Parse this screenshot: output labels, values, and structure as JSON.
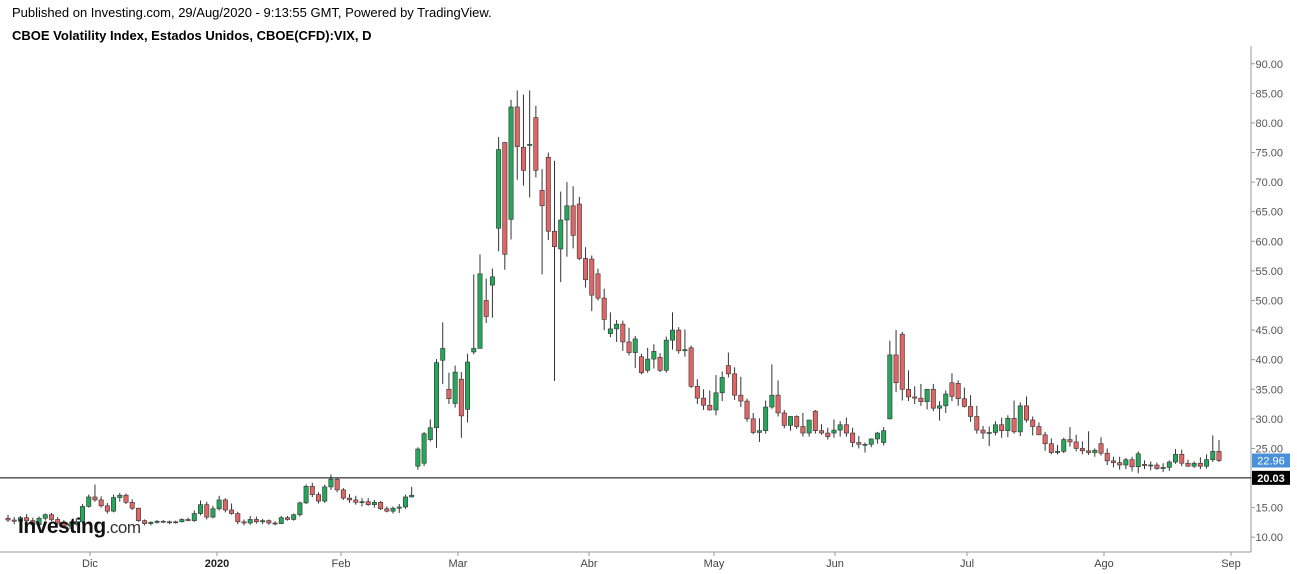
{
  "header": {
    "published": "Published on Investing.com, 29/Aug/2020 - 9:13:55 GMT, Powered by TradingView.",
    "title": "CBOE Volatility Index, Estados Unidos, CBOE(CFD):VIX, D"
  },
  "logo": {
    "main": "Investing",
    "suffix": ".com"
  },
  "chart_data": {
    "type": "candlestick",
    "ylim": [
      7.5,
      93
    ],
    "y_ticks": [
      "10.00",
      "15.00",
      "20.00",
      "25.00",
      "30.00",
      "35.00",
      "40.00",
      "45.00",
      "50.00",
      "55.00",
      "60.00",
      "65.00",
      "70.00",
      "75.00",
      "80.00",
      "85.00",
      "90.00"
    ],
    "x_ticks": [
      "Dic",
      "2020",
      "Feb",
      "Mar",
      "Abr",
      "May",
      "Jun",
      "Jul",
      "Ago",
      "Sep"
    ],
    "last_price": {
      "label": "22.96",
      "value": 22.96,
      "color": "#4a90d9"
    },
    "reference_line": {
      "label": "20.03",
      "value": 20.03,
      "color": "#000000"
    },
    "colors": {
      "up": "#26a65b",
      "down": "#e06666",
      "outline": "#333333"
    },
    "candles": [
      {
        "o": 13.2,
        "h": 13.8,
        "l": 12.6,
        "c": 12.9
      },
      {
        "o": 12.9,
        "h": 13.4,
        "l": 12.2,
        "c": 12.7
      },
      {
        "o": 12.7,
        "h": 13.6,
        "l": 12.3,
        "c": 13.3
      },
      {
        "o": 13.3,
        "h": 13.9,
        "l": 12.5,
        "c": 12.8
      },
      {
        "o": 12.8,
        "h": 13.3,
        "l": 11.9,
        "c": 12.1
      },
      {
        "o": 12.1,
        "h": 13.5,
        "l": 11.9,
        "c": 13.2
      },
      {
        "o": 13.2,
        "h": 14.0,
        "l": 12.8,
        "c": 13.8
      },
      {
        "o": 13.8,
        "h": 14.1,
        "l": 12.7,
        "c": 13.0
      },
      {
        "o": 13.0,
        "h": 13.4,
        "l": 12.0,
        "c": 12.4
      },
      {
        "o": 12.4,
        "h": 12.9,
        "l": 11.5,
        "c": 11.9
      },
      {
        "o": 11.9,
        "h": 12.6,
        "l": 11.4,
        "c": 12.2
      },
      {
        "o": 12.2,
        "h": 13.2,
        "l": 12.0,
        "c": 12.6
      },
      {
        "o": 12.6,
        "h": 15.6,
        "l": 12.3,
        "c": 15.2
      },
      {
        "o": 15.2,
        "h": 17.2,
        "l": 15.0,
        "c": 16.8
      },
      {
        "o": 16.8,
        "h": 18.9,
        "l": 16.0,
        "c": 16.3
      },
      {
        "o": 16.3,
        "h": 16.9,
        "l": 15.0,
        "c": 15.3
      },
      {
        "o": 15.3,
        "h": 15.8,
        "l": 14.0,
        "c": 14.4
      },
      {
        "o": 14.4,
        "h": 17.2,
        "l": 14.2,
        "c": 16.7
      },
      {
        "o": 16.7,
        "h": 17.5,
        "l": 16.0,
        "c": 17.1
      },
      {
        "o": 17.1,
        "h": 17.4,
        "l": 15.6,
        "c": 15.9
      },
      {
        "o": 15.9,
        "h": 16.4,
        "l": 14.6,
        "c": 14.9
      },
      {
        "o": 14.9,
        "h": 15.0,
        "l": 12.6,
        "c": 12.8
      },
      {
        "o": 12.8,
        "h": 13.0,
        "l": 12.0,
        "c": 12.3
      },
      {
        "o": 12.3,
        "h": 12.7,
        "l": 12.0,
        "c": 12.5
      },
      {
        "o": 12.5,
        "h": 12.9,
        "l": 12.3,
        "c": 12.7
      },
      {
        "o": 12.7,
        "h": 12.9,
        "l": 12.4,
        "c": 12.6
      },
      {
        "o": 12.6,
        "h": 12.8,
        "l": 12.2,
        "c": 12.5
      },
      {
        "o": 12.5,
        "h": 12.8,
        "l": 12.3,
        "c": 12.6
      },
      {
        "o": 12.6,
        "h": 13.2,
        "l": 12.5,
        "c": 13.0
      },
      {
        "o": 13.0,
        "h": 13.3,
        "l": 12.7,
        "c": 12.8
      },
      {
        "o": 12.8,
        "h": 14.5,
        "l": 12.6,
        "c": 14.0
      },
      {
        "o": 14.0,
        "h": 16.2,
        "l": 13.7,
        "c": 15.5
      },
      {
        "o": 15.5,
        "h": 16.0,
        "l": 13.0,
        "c": 13.4
      },
      {
        "o": 13.4,
        "h": 15.3,
        "l": 13.2,
        "c": 14.8
      },
      {
        "o": 14.8,
        "h": 17.0,
        "l": 14.5,
        "c": 16.3
      },
      {
        "o": 16.3,
        "h": 16.6,
        "l": 14.2,
        "c": 14.6
      },
      {
        "o": 14.6,
        "h": 15.7,
        "l": 13.8,
        "c": 14.0
      },
      {
        "o": 14.0,
        "h": 14.3,
        "l": 12.2,
        "c": 12.6
      },
      {
        "o": 12.6,
        "h": 13.0,
        "l": 12.0,
        "c": 12.4
      },
      {
        "o": 12.4,
        "h": 13.6,
        "l": 12.1,
        "c": 13.0
      },
      {
        "o": 13.0,
        "h": 13.5,
        "l": 12.3,
        "c": 12.6
      },
      {
        "o": 12.6,
        "h": 13.1,
        "l": 12.2,
        "c": 12.8
      },
      {
        "o": 12.8,
        "h": 13.0,
        "l": 12.1,
        "c": 12.4
      },
      {
        "o": 12.4,
        "h": 12.7,
        "l": 12.0,
        "c": 12.3
      },
      {
        "o": 12.3,
        "h": 13.6,
        "l": 12.2,
        "c": 13.3
      },
      {
        "o": 13.3,
        "h": 13.6,
        "l": 12.8,
        "c": 13.0
      },
      {
        "o": 13.0,
        "h": 14.0,
        "l": 12.8,
        "c": 13.8
      },
      {
        "o": 13.8,
        "h": 16.0,
        "l": 13.5,
        "c": 15.8
      },
      {
        "o": 15.8,
        "h": 18.9,
        "l": 15.6,
        "c": 18.6
      },
      {
        "o": 18.6,
        "h": 19.2,
        "l": 16.8,
        "c": 17.2
      },
      {
        "o": 17.2,
        "h": 17.6,
        "l": 15.7,
        "c": 16.1
      },
      {
        "o": 16.1,
        "h": 18.9,
        "l": 15.8,
        "c": 18.5
      },
      {
        "o": 18.5,
        "h": 20.6,
        "l": 18.0,
        "c": 19.8
      },
      {
        "o": 19.8,
        "h": 20.0,
        "l": 17.6,
        "c": 18.0
      },
      {
        "o": 18.0,
        "h": 18.3,
        "l": 16.3,
        "c": 16.6
      },
      {
        "o": 16.6,
        "h": 17.3,
        "l": 15.8,
        "c": 16.3
      },
      {
        "o": 16.3,
        "h": 17.0,
        "l": 15.5,
        "c": 15.9
      },
      {
        "o": 15.9,
        "h": 16.6,
        "l": 15.2,
        "c": 16.0
      },
      {
        "o": 16.0,
        "h": 16.6,
        "l": 15.3,
        "c": 15.5
      },
      {
        "o": 15.5,
        "h": 16.3,
        "l": 15.0,
        "c": 15.9
      },
      {
        "o": 15.9,
        "h": 16.1,
        "l": 14.6,
        "c": 14.8
      },
      {
        "o": 14.8,
        "h": 15.2,
        "l": 14.2,
        "c": 14.4
      },
      {
        "o": 14.4,
        "h": 15.2,
        "l": 14.0,
        "c": 14.9
      },
      {
        "o": 14.9,
        "h": 15.6,
        "l": 14.1,
        "c": 15.1
      },
      {
        "o": 15.1,
        "h": 17.2,
        "l": 14.8,
        "c": 16.8
      },
      {
        "o": 16.8,
        "h": 18.5,
        "l": 16.7,
        "c": 17.1
      },
      {
        "o": 22.0,
        "h": 25.2,
        "l": 21.4,
        "c": 24.9
      },
      {
        "o": 22.5,
        "h": 27.8,
        "l": 22.0,
        "c": 27.5
      },
      {
        "o": 26.5,
        "h": 29.9,
        "l": 26.2,
        "c": 28.5
      },
      {
        "o": 28.5,
        "h": 40.1,
        "l": 25.1,
        "c": 39.5
      },
      {
        "o": 39.9,
        "h": 46.3,
        "l": 35.9,
        "c": 41.9
      },
      {
        "o": 35.0,
        "h": 37.8,
        "l": 32.5,
        "c": 33.4
      },
      {
        "o": 32.6,
        "h": 39.0,
        "l": 31.9,
        "c": 37.9
      },
      {
        "o": 36.7,
        "h": 37.9,
        "l": 26.8,
        "c": 30.5
      },
      {
        "o": 31.6,
        "h": 41.0,
        "l": 29.4,
        "c": 39.6
      },
      {
        "o": 41.3,
        "h": 54.4,
        "l": 40.9,
        "c": 41.9
      },
      {
        "o": 41.9,
        "h": 57.8,
        "l": 42.4,
        "c": 54.5
      },
      {
        "o": 50.0,
        "h": 53.7,
        "l": 46.2,
        "c": 47.3
      },
      {
        "o": 52.6,
        "h": 55.4,
        "l": 47.1,
        "c": 54.0
      },
      {
        "o": 62.2,
        "h": 77.6,
        "l": 58.3,
        "c": 75.5
      },
      {
        "o": 76.7,
        "h": 76.8,
        "l": 55.2,
        "c": 57.8
      },
      {
        "o": 63.7,
        "h": 83.9,
        "l": 60.3,
        "c": 82.7
      },
      {
        "o": 82.7,
        "h": 85.5,
        "l": 70.4,
        "c": 76.0
      },
      {
        "o": 75.9,
        "h": 84.8,
        "l": 69.4,
        "c": 72.0
      },
      {
        "o": 76.2,
        "h": 85.5,
        "l": 67.4,
        "c": 76.4
      },
      {
        "o": 80.9,
        "h": 82.9,
        "l": 70.8,
        "c": 72.0
      },
      {
        "o": 68.6,
        "h": 72.2,
        "l": 54.4,
        "c": 66.0
      },
      {
        "o": 74.2,
        "h": 75.0,
        "l": 60.2,
        "c": 61.7
      },
      {
        "o": 61.7,
        "h": 73.6,
        "l": 36.4,
        "c": 59.1
      },
      {
        "o": 58.7,
        "h": 68.4,
        "l": 53.1,
        "c": 63.6
      },
      {
        "o": 63.6,
        "h": 70.0,
        "l": 57.4,
        "c": 66.0
      },
      {
        "o": 66.0,
        "h": 69.3,
        "l": 58.8,
        "c": 61.0
      },
      {
        "o": 66.3,
        "h": 67.5,
        "l": 56.8,
        "c": 57.1
      },
      {
        "o": 57.1,
        "h": 59.0,
        "l": 52.2,
        "c": 53.5
      },
      {
        "o": 57.0,
        "h": 57.6,
        "l": 48.2,
        "c": 50.9
      },
      {
        "o": 54.5,
        "h": 55.4,
        "l": 50.0,
        "c": 50.4
      },
      {
        "o": 50.4,
        "h": 52.0,
        "l": 45.0,
        "c": 46.8
      },
      {
        "o": 44.4,
        "h": 48.0,
        "l": 43.8,
        "c": 45.2
      },
      {
        "o": 45.2,
        "h": 46.7,
        "l": 43.0,
        "c": 46.0
      },
      {
        "o": 46.0,
        "h": 46.6,
        "l": 41.5,
        "c": 43.0
      },
      {
        "o": 43.0,
        "h": 45.4,
        "l": 40.7,
        "c": 41.2
      },
      {
        "o": 41.2,
        "h": 44.0,
        "l": 38.6,
        "c": 43.5
      },
      {
        "o": 40.5,
        "h": 41.0,
        "l": 37.5,
        "c": 37.8
      },
      {
        "o": 38.2,
        "h": 42.0,
        "l": 37.8,
        "c": 40.1
      },
      {
        "o": 40.1,
        "h": 42.6,
        "l": 38.5,
        "c": 41.4
      },
      {
        "o": 40.4,
        "h": 41.1,
        "l": 37.9,
        "c": 38.2
      },
      {
        "o": 38.2,
        "h": 43.9,
        "l": 37.8,
        "c": 43.3
      },
      {
        "o": 43.3,
        "h": 48.0,
        "l": 41.7,
        "c": 45.0
      },
      {
        "o": 45.0,
        "h": 45.5,
        "l": 41.0,
        "c": 41.5
      },
      {
        "o": 41.5,
        "h": 45.1,
        "l": 40.5,
        "c": 41.7
      },
      {
        "o": 42.0,
        "h": 42.4,
        "l": 35.2,
        "c": 35.5
      },
      {
        "o": 35.5,
        "h": 36.7,
        "l": 32.5,
        "c": 33.5
      },
      {
        "o": 33.5,
        "h": 35.0,
        "l": 31.5,
        "c": 32.3
      },
      {
        "o": 32.3,
        "h": 34.8,
        "l": 31.4,
        "c": 31.5
      },
      {
        "o": 31.5,
        "h": 37.4,
        "l": 30.6,
        "c": 34.4
      },
      {
        "o": 34.4,
        "h": 38.0,
        "l": 33.0,
        "c": 37.0
      },
      {
        "o": 39.0,
        "h": 41.2,
        "l": 37.0,
        "c": 37.6
      },
      {
        "o": 37.6,
        "h": 38.7,
        "l": 33.2,
        "c": 34.0
      },
      {
        "o": 34.0,
        "h": 37.1,
        "l": 32.0,
        "c": 33.0
      },
      {
        "o": 33.0,
        "h": 33.4,
        "l": 29.5,
        "c": 30.0
      },
      {
        "o": 30.0,
        "h": 31.0,
        "l": 27.4,
        "c": 27.7
      },
      {
        "o": 27.7,
        "h": 30.1,
        "l": 26.1,
        "c": 28.0
      },
      {
        "o": 28.0,
        "h": 33.1,
        "l": 27.5,
        "c": 32.0
      },
      {
        "o": 32.0,
        "h": 39.2,
        "l": 31.7,
        "c": 34.0
      },
      {
        "o": 34.0,
        "h": 36.5,
        "l": 30.4,
        "c": 31.0
      },
      {
        "o": 31.0,
        "h": 31.5,
        "l": 28.4,
        "c": 28.9
      },
      {
        "o": 28.9,
        "h": 30.5,
        "l": 28.0,
        "c": 30.4
      },
      {
        "o": 30.4,
        "h": 30.6,
        "l": 28.3,
        "c": 28.7
      },
      {
        "o": 28.7,
        "h": 31.0,
        "l": 27.0,
        "c": 27.6
      },
      {
        "o": 27.6,
        "h": 29.8,
        "l": 27.0,
        "c": 29.8
      },
      {
        "o": 31.3,
        "h": 31.5,
        "l": 27.5,
        "c": 28.0
      },
      {
        "o": 28.0,
        "h": 29.1,
        "l": 27.3,
        "c": 27.6
      },
      {
        "o": 27.6,
        "h": 28.5,
        "l": 26.5,
        "c": 27.0
      },
      {
        "o": 27.6,
        "h": 29.9,
        "l": 26.8,
        "c": 28.1
      },
      {
        "o": 28.1,
        "h": 29.6,
        "l": 27.0,
        "c": 29.0
      },
      {
        "o": 29.0,
        "h": 30.2,
        "l": 27.0,
        "c": 27.6
      },
      {
        "o": 27.6,
        "h": 28.5,
        "l": 25.2,
        "c": 26.0
      },
      {
        "o": 26.0,
        "h": 27.1,
        "l": 25.0,
        "c": 25.7
      },
      {
        "o": 25.7,
        "h": 26.0,
        "l": 24.3,
        "c": 25.7
      },
      {
        "o": 25.7,
        "h": 26.7,
        "l": 25.2,
        "c": 26.6
      },
      {
        "o": 26.6,
        "h": 27.8,
        "l": 25.8,
        "c": 27.6
      },
      {
        "o": 26.0,
        "h": 28.6,
        "l": 25.5,
        "c": 28.0
      },
      {
        "o": 30.0,
        "h": 43.2,
        "l": 29.9,
        "c": 40.8
      },
      {
        "o": 40.8,
        "h": 45.0,
        "l": 34.5,
        "c": 36.1
      },
      {
        "o": 44.3,
        "h": 44.7,
        "l": 33.1,
        "c": 35.0
      },
      {
        "o": 35.0,
        "h": 38.2,
        "l": 33.0,
        "c": 33.7
      },
      {
        "o": 33.7,
        "h": 35.5,
        "l": 32.5,
        "c": 33.5
      },
      {
        "o": 33.5,
        "h": 35.9,
        "l": 32.2,
        "c": 32.9
      },
      {
        "o": 32.9,
        "h": 35.0,
        "l": 31.6,
        "c": 35.0
      },
      {
        "o": 35.0,
        "h": 35.9,
        "l": 31.3,
        "c": 31.8
      },
      {
        "o": 31.8,
        "h": 33.0,
        "l": 29.7,
        "c": 32.2
      },
      {
        "o": 32.2,
        "h": 34.8,
        "l": 31.0,
        "c": 34.2
      },
      {
        "o": 36.1,
        "h": 37.7,
        "l": 33.0,
        "c": 33.8
      },
      {
        "o": 36.0,
        "h": 36.5,
        "l": 32.2,
        "c": 33.4
      },
      {
        "o": 33.4,
        "h": 35.3,
        "l": 31.9,
        "c": 32.1
      },
      {
        "o": 32.1,
        "h": 34.0,
        "l": 29.5,
        "c": 30.4
      },
      {
        "o": 30.4,
        "h": 32.2,
        "l": 27.5,
        "c": 28.1
      },
      {
        "o": 28.1,
        "h": 28.8,
        "l": 26.6,
        "c": 27.6
      },
      {
        "o": 27.6,
        "h": 28.7,
        "l": 25.4,
        "c": 27.7
      },
      {
        "o": 27.7,
        "h": 29.6,
        "l": 27.2,
        "c": 29.0
      },
      {
        "o": 29.0,
        "h": 30.2,
        "l": 26.8,
        "c": 28.0
      },
      {
        "o": 28.0,
        "h": 30.6,
        "l": 26.9,
        "c": 30.1
      },
      {
        "o": 30.1,
        "h": 33.1,
        "l": 27.5,
        "c": 27.8
      },
      {
        "o": 27.8,
        "h": 32.8,
        "l": 27.1,
        "c": 32.2
      },
      {
        "o": 32.2,
        "h": 33.8,
        "l": 29.4,
        "c": 29.8
      },
      {
        "o": 29.8,
        "h": 30.4,
        "l": 27.2,
        "c": 28.7
      },
      {
        "o": 28.7,
        "h": 29.4,
        "l": 27.4,
        "c": 27.3
      },
      {
        "o": 27.3,
        "h": 27.8,
        "l": 24.6,
        "c": 25.8
      },
      {
        "o": 25.8,
        "h": 26.7,
        "l": 24.0,
        "c": 24.3
      },
      {
        "o": 24.3,
        "h": 25.6,
        "l": 24.0,
        "c": 24.5
      },
      {
        "o": 24.5,
        "h": 26.8,
        "l": 24.2,
        "c": 26.5
      },
      {
        "o": 26.5,
        "h": 28.6,
        "l": 25.3,
        "c": 26.1
      },
      {
        "o": 26.1,
        "h": 27.3,
        "l": 24.5,
        "c": 25.0
      },
      {
        "o": 25.0,
        "h": 26.2,
        "l": 24.0,
        "c": 24.6
      },
      {
        "o": 24.6,
        "h": 27.9,
        "l": 23.9,
        "c": 24.3
      },
      {
        "o": 24.3,
        "h": 25.0,
        "l": 23.6,
        "c": 24.7
      },
      {
        "o": 25.8,
        "h": 26.9,
        "l": 23.8,
        "c": 24.2
      },
      {
        "o": 24.2,
        "h": 25.0,
        "l": 22.2,
        "c": 22.9
      },
      {
        "o": 22.9,
        "h": 23.6,
        "l": 21.8,
        "c": 22.6
      },
      {
        "o": 22.6,
        "h": 23.6,
        "l": 21.4,
        "c": 22.2
      },
      {
        "o": 22.2,
        "h": 23.4,
        "l": 21.5,
        "c": 23.1
      },
      {
        "o": 23.1,
        "h": 23.6,
        "l": 21.1,
        "c": 21.9
      },
      {
        "o": 21.9,
        "h": 24.5,
        "l": 20.8,
        "c": 24.1
      },
      {
        "o": 22.3,
        "h": 23.0,
        "l": 21.5,
        "c": 22.1
      },
      {
        "o": 22.1,
        "h": 22.8,
        "l": 21.3,
        "c": 22.2
      },
      {
        "o": 22.2,
        "h": 22.6,
        "l": 21.4,
        "c": 21.6
      },
      {
        "o": 21.6,
        "h": 22.5,
        "l": 21.0,
        "c": 21.8
      },
      {
        "o": 21.8,
        "h": 23.0,
        "l": 21.2,
        "c": 22.7
      },
      {
        "o": 22.7,
        "h": 24.9,
        "l": 22.4,
        "c": 24.0
      },
      {
        "o": 24.0,
        "h": 24.8,
        "l": 22.0,
        "c": 22.5
      },
      {
        "o": 22.5,
        "h": 23.1,
        "l": 21.9,
        "c": 22.0
      },
      {
        "o": 22.0,
        "h": 22.8,
        "l": 21.7,
        "c": 22.5
      },
      {
        "o": 22.5,
        "h": 23.5,
        "l": 21.5,
        "c": 22.0
      },
      {
        "o": 22.0,
        "h": 24.0,
        "l": 21.6,
        "c": 23.1
      },
      {
        "o": 23.1,
        "h": 27.2,
        "l": 22.7,
        "c": 24.5
      },
      {
        "o": 24.5,
        "h": 26.4,
        "l": 22.7,
        "c": 22.96
      }
    ]
  }
}
